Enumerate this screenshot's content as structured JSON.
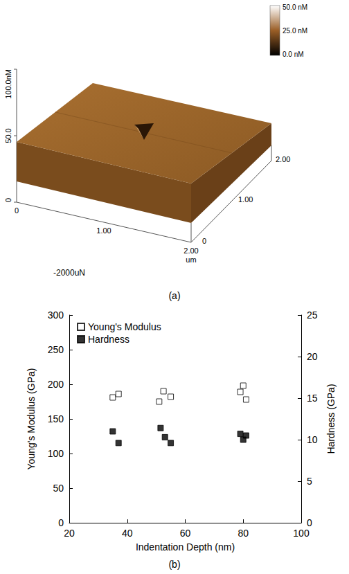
{
  "afm_image": {
    "z_axis": {
      "labels": [
        "100.0nM",
        "50.0",
        "0"
      ]
    },
    "x_axis": {
      "labels": [
        "0",
        "1.00",
        "2.00"
      ],
      "unit": "um"
    },
    "y_axis": {
      "labels": [
        "0",
        "1.00",
        "2.00"
      ]
    },
    "color_bar": {
      "labels": [
        "50.0 nM",
        "25.0 nM",
        "0.0 nM"
      ]
    },
    "caption": "-2000uN",
    "panel_label": "(a)"
  },
  "chart_data": {
    "type": "scatter",
    "annotations": [
      "(b)"
    ],
    "xlabel": "Indentation Depth (nm)",
    "ylabel": "Young's Modulus (GPa)",
    "y2label": "Hardness (GPa)",
    "xlim": [
      20,
      100
    ],
    "xticks": [
      20,
      40,
      60,
      80,
      100
    ],
    "ylim": [
      0,
      300
    ],
    "yticks": [
      0,
      50,
      100,
      150,
      200,
      250,
      300
    ],
    "y2lim": [
      0,
      25
    ],
    "y2ticks": [
      0,
      5,
      10,
      15,
      20,
      25
    ],
    "grid": false,
    "legend": "upper left",
    "series": [
      {
        "name": "Young's Modulus",
        "color": "#000000",
        "marker": "open square",
        "x": [
          35,
          37,
          51,
          52.5,
          55,
          79,
          80,
          81
        ],
        "values": [
          181,
          186,
          175,
          190,
          182,
          189,
          198,
          178
        ]
      },
      {
        "name": "Hardness",
        "color": "#000000",
        "marker": "square",
        "axis": "y2",
        "x": [
          35,
          37,
          51.5,
          53,
          55,
          79,
          80,
          81
        ],
        "values": [
          11,
          9.6,
          11.4,
          10.3,
          9.6,
          10.7,
          10,
          10.5
        ]
      }
    ]
  }
}
